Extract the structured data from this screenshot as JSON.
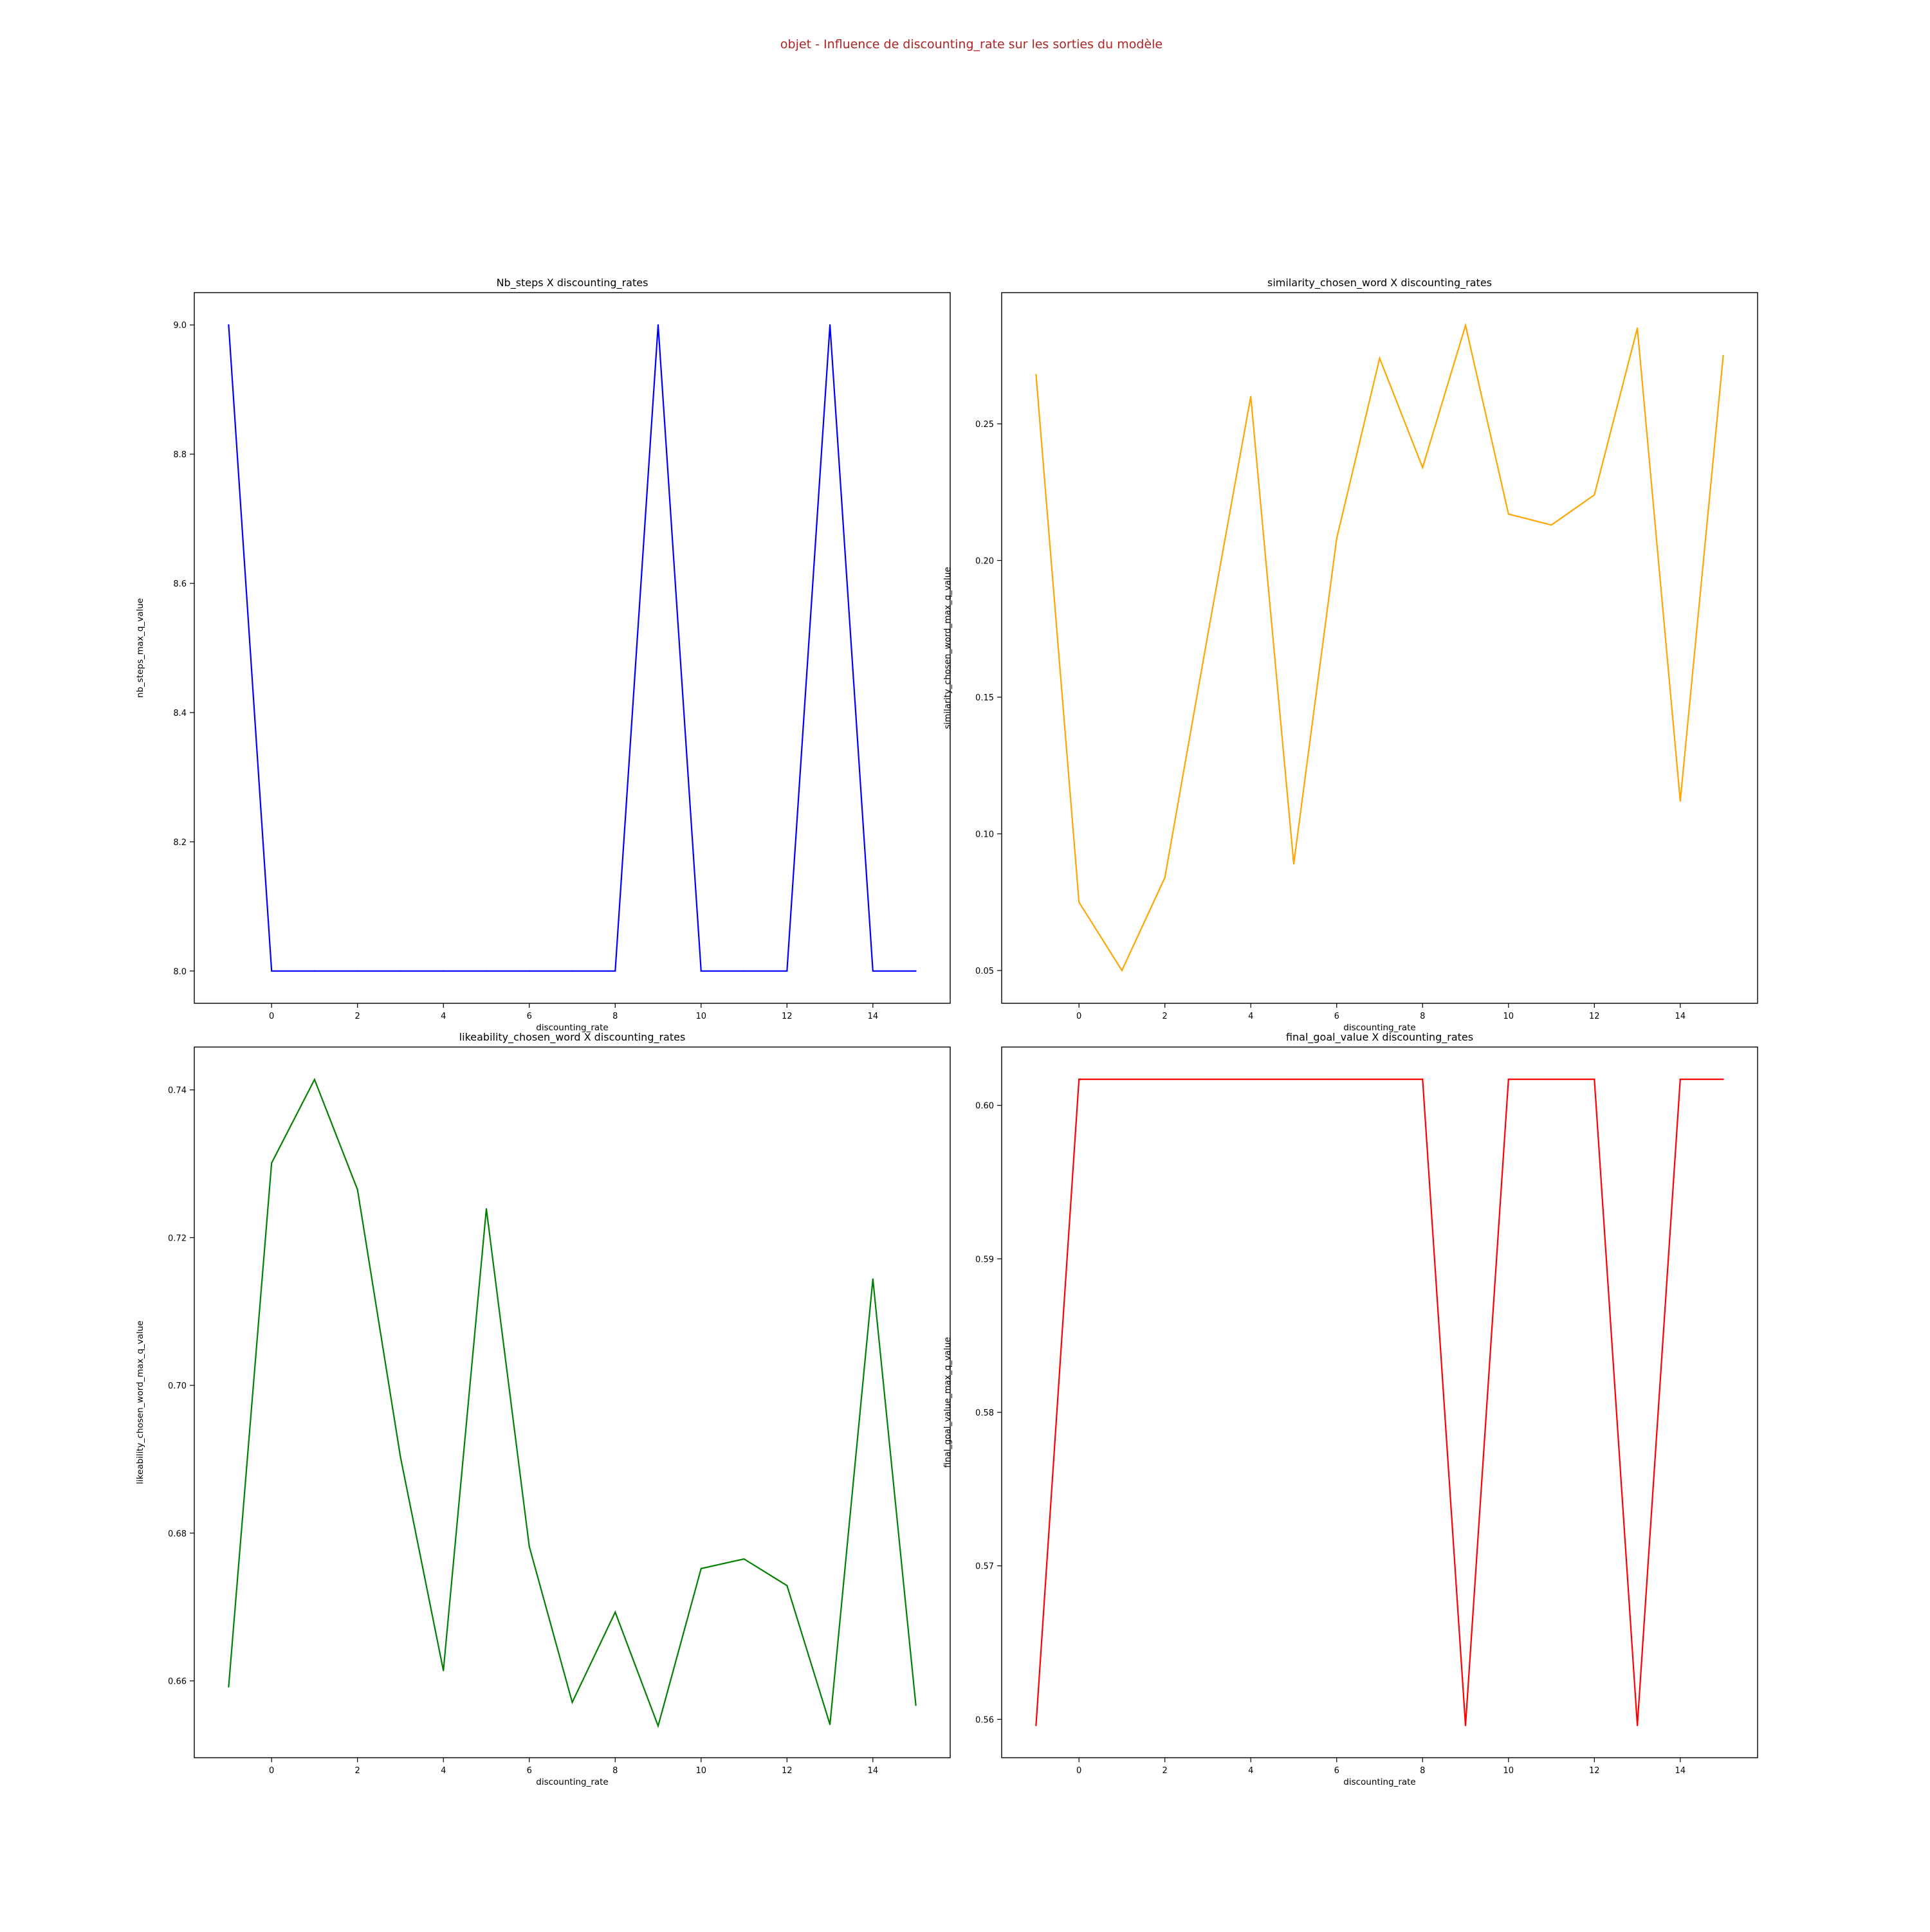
{
  "figure": {
    "suptitle": "objet - Influence de discounting_rate sur les sorties du modèle",
    "suptitle_color": "#b22222"
  },
  "chart_data": [
    {
      "type": "line",
      "title": "Nb_steps X discounting_rates",
      "xlabel": "discounting_rate",
      "ylabel": "nb_steps_max_q_value",
      "color": "#0000ff",
      "x": [
        -1,
        0,
        1,
        2,
        3,
        4,
        5,
        6,
        7,
        8,
        9,
        10,
        11,
        12,
        13,
        14,
        15
      ],
      "y": [
        9,
        8,
        8,
        8,
        8,
        8,
        8,
        8,
        8,
        8,
        9,
        8,
        8,
        8,
        9,
        8,
        8
      ],
      "xlim": [
        -1.8,
        15.8
      ],
      "ylim": [
        7.95,
        9.05
      ],
      "xticks": [
        0,
        2,
        4,
        6,
        8,
        10,
        12,
        14
      ],
      "xtick_labels": [
        "0",
        "2",
        "4",
        "6",
        "8",
        "10",
        "12",
        "14"
      ],
      "yticks": [
        8.0,
        8.2,
        8.4,
        8.6,
        8.8,
        9.0
      ],
      "ytick_labels": [
        "8.0",
        "8.2",
        "8.4",
        "8.6",
        "8.8",
        "9.0"
      ],
      "grid": false
    },
    {
      "type": "line",
      "title": "similarity_chosen_word X discounting_rates",
      "xlabel": "discounting_rate",
      "ylabel": "similarity_chosen_word_max_q_value",
      "color": "#ffa500",
      "x": [
        -1,
        0,
        1,
        2,
        3,
        4,
        5,
        6,
        7,
        8,
        9,
        10,
        11,
        12,
        13,
        14,
        15
      ],
      "y": [
        0.268,
        0.075,
        0.05,
        0.084,
        0.173,
        0.26,
        0.089,
        0.208,
        0.274,
        0.234,
        0.286,
        0.217,
        0.213,
        0.224,
        0.285,
        0.112,
        0.275
      ],
      "xlim": [
        -1.8,
        15.8
      ],
      "ylim": [
        0.038,
        0.298
      ],
      "xticks": [
        0,
        2,
        4,
        6,
        8,
        10,
        12,
        14
      ],
      "xtick_labels": [
        "0",
        "2",
        "4",
        "6",
        "8",
        "10",
        "12",
        "14"
      ],
      "yticks": [
        0.05,
        0.1,
        0.15,
        0.2,
        0.25
      ],
      "ytick_labels": [
        "0.05",
        "0.10",
        "0.15",
        "0.20",
        "0.25"
      ],
      "grid": false
    },
    {
      "type": "line",
      "title": "likeability_chosen_word X discounting_rates",
      "xlabel": "discounting_rate",
      "ylabel": "likeability_chosen_word_max_q_value",
      "color": "#008000",
      "x": [
        -1,
        0,
        1,
        2,
        3,
        4,
        5,
        6,
        7,
        8,
        9,
        10,
        11,
        12,
        13,
        14,
        15
      ],
      "y": [
        0.6592,
        0.7301,
        0.7414,
        0.7265,
        0.6903,
        0.6614,
        0.7239,
        0.6782,
        0.6571,
        0.6693,
        0.6539,
        0.6752,
        0.6765,
        0.6729,
        0.6541,
        0.7144,
        0.6567
      ],
      "xlim": [
        -1.8,
        15.8
      ],
      "ylim": [
        0.6496,
        0.7458
      ],
      "xticks": [
        0,
        2,
        4,
        6,
        8,
        10,
        12,
        14
      ],
      "xtick_labels": [
        "0",
        "2",
        "4",
        "6",
        "8",
        "10",
        "12",
        "14"
      ],
      "yticks": [
        0.66,
        0.68,
        0.7,
        0.72,
        0.74
      ],
      "ytick_labels": [
        "0.66",
        "0.68",
        "0.70",
        "0.72",
        "0.74"
      ],
      "grid": false
    },
    {
      "type": "line",
      "title": "final_goal_value X discounting_rates",
      "xlabel": "discounting_rate",
      "ylabel": "final_goal_value_max_q_value",
      "color": "#ff0000",
      "x": [
        -1,
        0,
        1,
        2,
        3,
        4,
        5,
        6,
        7,
        8,
        9,
        10,
        11,
        12,
        13,
        14,
        15
      ],
      "y": [
        0.5596,
        0.6017,
        0.6017,
        0.6017,
        0.6017,
        0.6017,
        0.6017,
        0.6017,
        0.6017,
        0.6017,
        0.5596,
        0.6017,
        0.6017,
        0.6017,
        0.5596,
        0.6017,
        0.6017
      ],
      "xlim": [
        -1.8,
        15.8
      ],
      "ylim": [
        0.5575,
        0.6038
      ],
      "xticks": [
        0,
        2,
        4,
        6,
        8,
        10,
        12,
        14
      ],
      "xtick_labels": [
        "0",
        "2",
        "4",
        "6",
        "8",
        "10",
        "12",
        "14"
      ],
      "yticks": [
        0.56,
        0.57,
        0.58,
        0.59,
        0.6
      ],
      "ytick_labels": [
        "0.56",
        "0.57",
        "0.58",
        "0.59",
        "0.60"
      ],
      "grid": false
    }
  ]
}
